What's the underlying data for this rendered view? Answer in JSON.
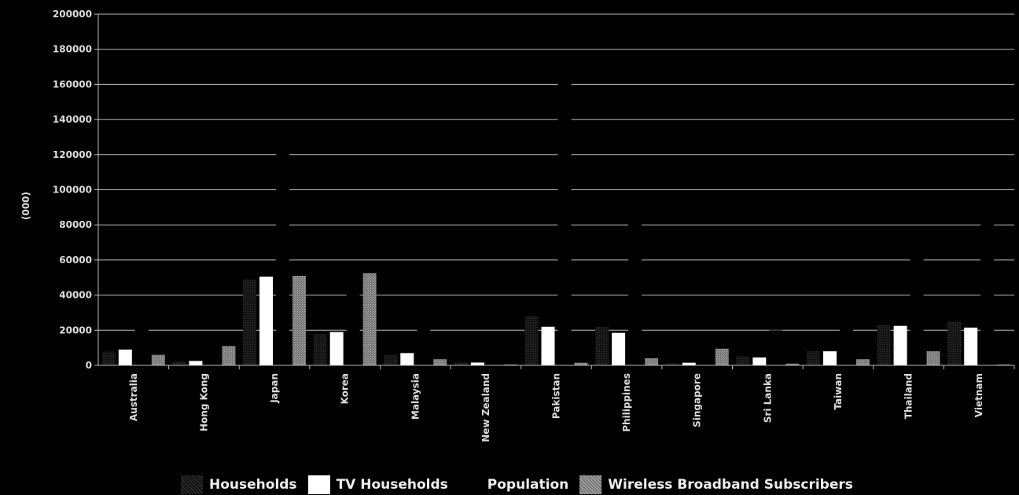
{
  "chart_data": {
    "type": "bar",
    "ylabel": "(000)",
    "ylim": [
      0,
      200000
    ],
    "yticks": [
      0,
      20000,
      40000,
      60000,
      80000,
      100000,
      120000,
      140000,
      160000,
      180000,
      200000
    ],
    "ytick_labels": [
      "0",
      "20000",
      "40000",
      "60000",
      "80000",
      "100000",
      "120000",
      "140000",
      "160000",
      "180000",
      "200000"
    ],
    "categories": [
      "Australia",
      "Hong Kong",
      "Japan",
      "Korea",
      "Malaysia",
      "New Zealand",
      "Pakistan",
      "Philippines",
      "Singapore",
      "Sri Lanka",
      "Taiwan",
      "Thailand",
      "Vietnam"
    ],
    "series": [
      {
        "name": "Households",
        "color": "#1e1e1e",
        "values": [
          7800,
          2300,
          49000,
          18000,
          6000,
          1600,
          28000,
          22000,
          1200,
          5200,
          8000,
          23000,
          25000
        ]
      },
      {
        "name": "TV Households",
        "color": "#ffffff",
        "values": [
          9000,
          2500,
          50500,
          19000,
          7000,
          1600,
          22000,
          18500,
          1500,
          4500,
          8000,
          22500,
          21500
        ]
      },
      {
        "name": "Population",
        "color": "#000000",
        "values": [
          21000,
          7000,
          128000,
          48500,
          27000,
          4200,
          166000,
          88000,
          4500,
          20000,
          23000,
          64000,
          85000
        ]
      },
      {
        "name": "Wireless Broadband Subscribers",
        "color": "#8c8c8c",
        "values": [
          6000,
          11000,
          51000,
          52500,
          3500,
          500,
          1500,
          4000,
          9500,
          1000,
          3500,
          8000,
          500
        ]
      }
    ],
    "grid": true,
    "legend": "bottom"
  }
}
